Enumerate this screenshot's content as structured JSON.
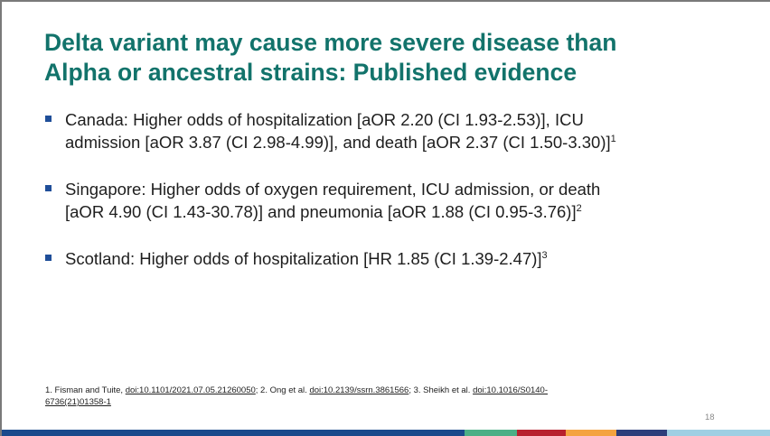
{
  "slide": {
    "title": [
      "Delta variant may cause more severe disease than",
      "Alpha or ancestral strains: Published evidence"
    ],
    "bullets": [
      {
        "lines": [
          "Canada: Higher odds of hospitalization [aOR 2.20 (CI 1.93-2.53)], ICU",
          "admission [aOR 3.87 (CI 2.98-4.99)], and death [aOR 2.37 (CI 1.50-3.30)]"
        ],
        "ref": "1"
      },
      {
        "lines": [
          "Singapore: Higher odds of oxygen requirement, ICU admission, or death",
          "[aOR 4.90 (CI 1.43-30.78)] and pneumonia [aOR 1.88 (CI 0.95-3.76)]"
        ],
        "ref": "2"
      },
      {
        "lines": [
          "Scotland: Higher odds of hospitalization [HR 1.85 (CI 1.39-2.47)]"
        ],
        "ref": "3"
      }
    ],
    "footnote": {
      "ref1_text": "1. Fisman and Tuite, ",
      "ref1_link": "doi:10.1101/2021.07.05.21260050",
      "ref2_text": "; 2. Ong et al. ",
      "ref2_link": "doi:10.2139/ssrn.3861566",
      "ref3_text": "; 3. Sheikh et al. ",
      "ref3_link_part1": "doi:10.1016/S0140-",
      "ref3_link_part2": "6736(21)01358-1"
    },
    "page_number": "18",
    "colors": {
      "title": "#12736b",
      "bullet_marker": "#1f4e99",
      "bottom_bar": [
        "#1a4a8c",
        "#4caf86",
        "#b8202e",
        "#f4a340",
        "#2c3e7b",
        "#9fcfe3"
      ]
    }
  }
}
